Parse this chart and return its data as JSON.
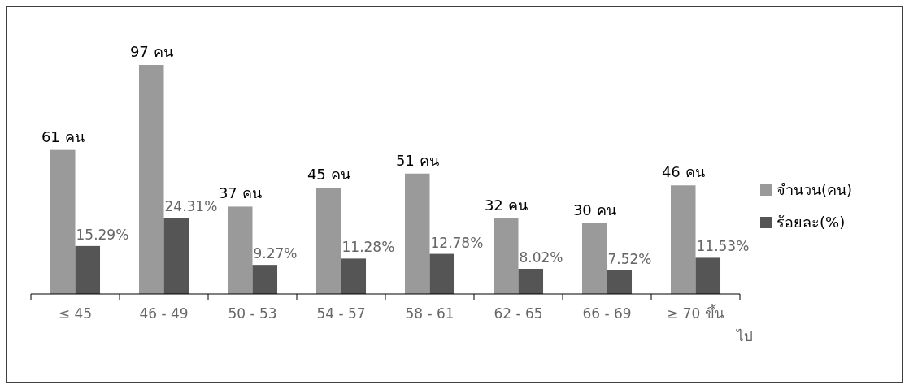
{
  "chart_data": {
    "type": "bar",
    "categories": [
      "≤ 45",
      "46 - 49",
      "50 - 53",
      "54 - 57",
      "58 - 61",
      "62 - 65",
      "66 - 69",
      "≥ 70 ขึ้นไป"
    ],
    "series": [
      {
        "name": "จำนวน(คน)",
        "color": "#9a9a9a",
        "values": [
          61,
          97,
          37,
          45,
          51,
          32,
          30,
          46
        ],
        "value_labels": [
          "61 คน",
          "97 คน",
          "37 คน",
          "45 คน",
          "51 คน",
          "32 คน",
          "30 คน",
          "46 คน"
        ]
      },
      {
        "name": "ร้อยละ(%)",
        "color": "#555555",
        "axis": "y2",
        "values": [
          15.29,
          24.31,
          9.27,
          11.28,
          12.78,
          8.02,
          7.52,
          11.53
        ],
        "value_labels": [
          "15.29%",
          "24.31%",
          "9.27%",
          "11.28%",
          "12.78%",
          "8.02%",
          "7.52%",
          "11.53%"
        ]
      }
    ],
    "legend": "right"
  }
}
